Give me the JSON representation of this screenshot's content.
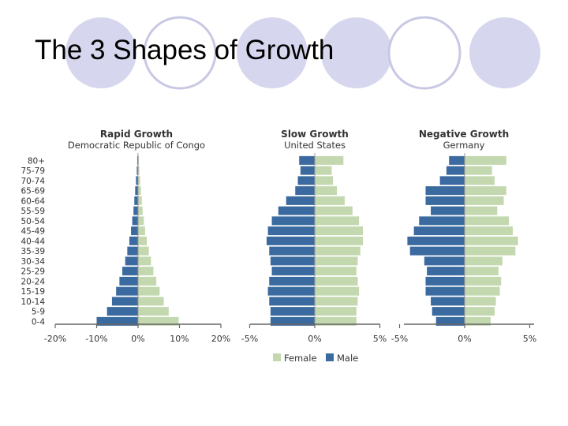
{
  "slide": {
    "title": "The 3 Shapes of Growth",
    "circle_fill": "#d6d6ee",
    "circle_outline": "#c8c8e4"
  },
  "chart_data": {
    "type": "bar",
    "orientation": "horizontal",
    "age_groups": [
      "80+",
      "75-79",
      "70-74",
      "65-69",
      "60-64",
      "55-59",
      "50-54",
      "45-49",
      "40-44",
      "35-39",
      "30-34",
      "25-29",
      "20-24",
      "15-19",
      "10-14",
      "5-9",
      "0-4"
    ],
    "legend": [
      {
        "name": "Female",
        "color": "#c3d8ae"
      },
      {
        "name": "Male",
        "color": "#3a6a9f"
      }
    ],
    "legend_position": "bottom-center",
    "grid": false,
    "panels": [
      {
        "title": "Rapid Growth",
        "subtitle": "Democratic Republic of Congo",
        "xlim": [
          -20,
          20
        ],
        "x_ticks": [
          "-20%",
          "-10%",
          "0%",
          "10%",
          "20%"
        ],
        "x_tick_values": [
          -20,
          -10,
          0,
          10,
          20
        ],
        "male": [
          0.2,
          0.3,
          0.5,
          0.7,
          0.9,
          1.1,
          1.4,
          1.7,
          2.1,
          2.6,
          3.1,
          3.8,
          4.5,
          5.3,
          6.3,
          7.5,
          10.0
        ],
        "female": [
          0.2,
          0.3,
          0.5,
          0.7,
          0.9,
          1.1,
          1.4,
          1.7,
          2.1,
          2.6,
          3.1,
          3.7,
          4.4,
          5.2,
          6.2,
          7.4,
          9.8
        ]
      },
      {
        "title": "Slow Growth",
        "subtitle": "United States",
        "xlim": [
          -5,
          5
        ],
        "x_ticks": [
          "-5%",
          "0%",
          "5%"
        ],
        "x_tick_values": [
          -5,
          0,
          5
        ],
        "male": [
          1.2,
          1.1,
          1.3,
          1.5,
          2.2,
          2.8,
          3.3,
          3.6,
          3.7,
          3.5,
          3.4,
          3.3,
          3.5,
          3.6,
          3.5,
          3.4,
          3.4
        ],
        "female": [
          2.2,
          1.3,
          1.4,
          1.7,
          2.3,
          2.9,
          3.4,
          3.7,
          3.7,
          3.5,
          3.3,
          3.2,
          3.3,
          3.4,
          3.3,
          3.2,
          3.2
        ]
      },
      {
        "title": "Negative Growth",
        "subtitle": "Germany",
        "xlim": [
          -5,
          5
        ],
        "x_ticks": [
          "-5%",
          "0%",
          "5%"
        ],
        "x_tick_values": [
          -5,
          0,
          5
        ],
        "male": [
          1.2,
          1.4,
          1.9,
          3.0,
          3.0,
          2.6,
          3.5,
          3.9,
          4.4,
          4.2,
          3.1,
          2.9,
          3.0,
          3.0,
          2.6,
          2.5,
          2.2
        ],
        "female": [
          3.2,
          2.1,
          2.3,
          3.2,
          3.0,
          2.5,
          3.4,
          3.7,
          4.1,
          3.9,
          2.9,
          2.6,
          2.8,
          2.7,
          2.4,
          2.3,
          2.0
        ]
      }
    ]
  }
}
